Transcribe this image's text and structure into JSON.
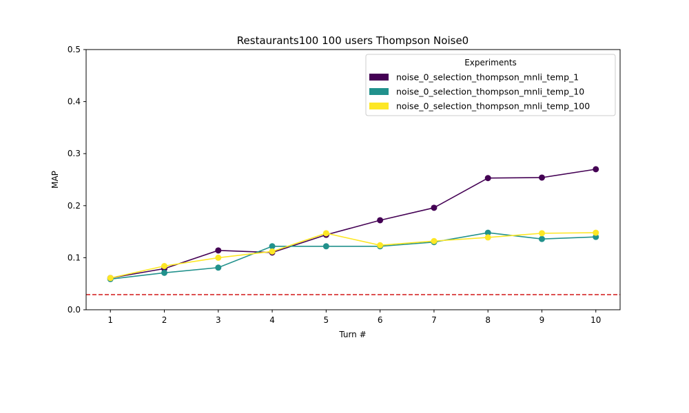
{
  "chart_data": {
    "type": "line",
    "title": "Restaurants100 100 users Thompson Noise0",
    "xlabel": "Turn #",
    "ylabel": "MAP",
    "x": [
      1,
      2,
      3,
      4,
      5,
      6,
      7,
      8,
      9,
      10
    ],
    "xlim": [
      0.55,
      10.45
    ],
    "ylim": [
      0,
      0.5
    ],
    "xticks": [
      "1",
      "2",
      "3",
      "4",
      "5",
      "6",
      "7",
      "8",
      "9",
      "10"
    ],
    "yticks": [
      "0.0",
      "0.1",
      "0.2",
      "0.3",
      "0.4",
      "0.5"
    ],
    "grid": false,
    "legend": {
      "title": "Experiments",
      "placement": "top-right"
    },
    "series": [
      {
        "name": "noise_0_selection_thompson_mnli_temp_1",
        "color": "#440154",
        "values": [
          0.061,
          0.079,
          0.114,
          0.11,
          0.144,
          0.172,
          0.196,
          0.253,
          0.254,
          0.27
        ]
      },
      {
        "name": "noise_0_selection_thompson_mnli_temp_10",
        "color": "#21918c",
        "values": [
          0.059,
          0.071,
          0.081,
          0.122,
          0.122,
          0.122,
          0.13,
          0.148,
          0.136,
          0.14
        ]
      },
      {
        "name": "noise_0_selection_thompson_mnli_temp_100",
        "color": "#fde725",
        "values": [
          0.061,
          0.084,
          0.1,
          0.112,
          0.147,
          0.124,
          0.132,
          0.139,
          0.147,
          0.148
        ]
      }
    ],
    "baseline": {
      "value": 0.029,
      "color": "#d62728",
      "style": "dashed"
    }
  }
}
